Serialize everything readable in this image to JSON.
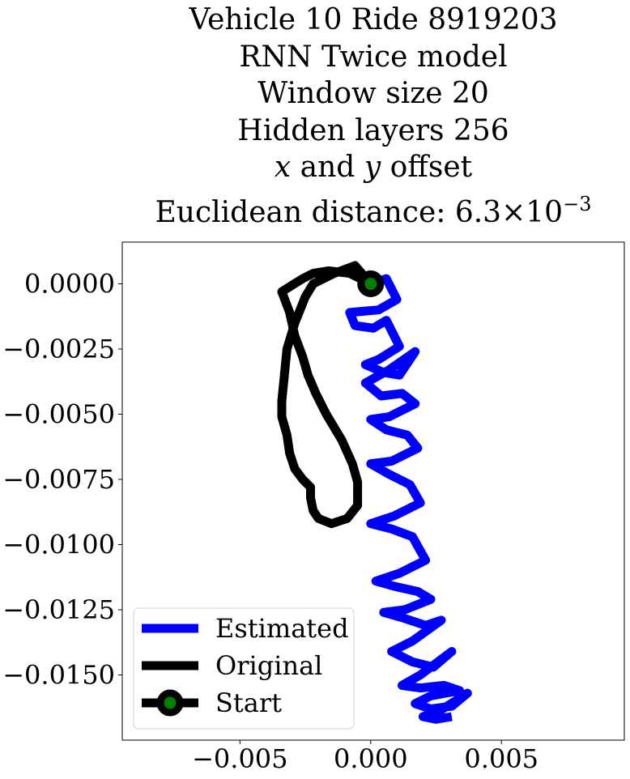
{
  "chart_data": {
    "type": "line",
    "title_lines": [
      "Vehicle 10 Ride 8919203",
      "RNN Twice model",
      "Window size 20",
      "Hidden layers 256"
    ],
    "offset_line": {
      "x_symbol": "x",
      "connector": "and",
      "y_symbol": "y",
      "suffix": "offset"
    },
    "distance_line": {
      "label": "Euclidean distance:",
      "mantissa": "6.3",
      "times": "×",
      "base": "10",
      "exponent": "−3"
    },
    "xlim": [
      -0.0095,
      0.0097
    ],
    "ylim": [
      -0.0175,
      0.0016
    ],
    "xticks": [
      {
        "value": -0.005,
        "label": "−0.005"
      },
      {
        "value": 0.0,
        "label": "0.000"
      },
      {
        "value": 0.005,
        "label": "0.005"
      }
    ],
    "yticks": [
      {
        "value": 0.0,
        "label": "0.0000"
      },
      {
        "value": -0.0025,
        "label": "−0.0025"
      },
      {
        "value": -0.005,
        "label": "−0.0050"
      },
      {
        "value": -0.0075,
        "label": "−0.0075"
      },
      {
        "value": -0.01,
        "label": "−0.0100"
      },
      {
        "value": -0.0125,
        "label": "−0.0125"
      },
      {
        "value": -0.015,
        "label": "−0.0150"
      }
    ],
    "legend_position": "lower-left",
    "series": [
      {
        "name": "Estimated",
        "color": "#0000ff",
        "x": [
          0.0,
          0.0006,
          0.001,
          0.0003,
          -0.0008,
          -0.0006,
          0.0001,
          0.0006,
          0.0011,
          0.0003,
          -0.0002,
          0.0005,
          0.0011,
          0.0017,
          0.0007,
          -0.0002,
          0.0004,
          0.0012,
          0.0017,
          0.0007,
          0.0,
          0.0006,
          0.0014,
          0.0018,
          0.0008,
          0.0,
          0.0007,
          0.0015,
          0.0019,
          0.0009,
          0.0,
          0.0008,
          0.0016,
          0.0021,
          0.0011,
          0.0002,
          0.0009,
          0.0018,
          0.0023,
          0.0013,
          0.0005,
          0.0012,
          0.0021,
          0.0027,
          0.0016,
          0.0008,
          0.0016,
          0.0024,
          0.0031,
          0.0019,
          0.0012,
          0.0019,
          0.0028,
          0.0034,
          0.0023,
          0.0017,
          0.0023,
          0.0031,
          0.0037,
          0.0026,
          0.002,
          0.0025,
          0.0031
        ],
        "y": [
          0.0,
          0.0002,
          -0.0006,
          -0.001,
          -0.0011,
          -0.0016,
          -0.0017,
          -0.0014,
          -0.0024,
          -0.0029,
          -0.0031,
          -0.0034,
          -0.0035,
          -0.0026,
          -0.0033,
          -0.0038,
          -0.0043,
          -0.0042,
          -0.0046,
          -0.0051,
          -0.0052,
          -0.0056,
          -0.0058,
          -0.0063,
          -0.0068,
          -0.0069,
          -0.0073,
          -0.0077,
          -0.0084,
          -0.0089,
          -0.0092,
          -0.0094,
          -0.0097,
          -0.0106,
          -0.0111,
          -0.0114,
          -0.0116,
          -0.0118,
          -0.0121,
          -0.0125,
          -0.0126,
          -0.0128,
          -0.0131,
          -0.0129,
          -0.0137,
          -0.0141,
          -0.0145,
          -0.0147,
          -0.0141,
          -0.015,
          -0.0154,
          -0.0155,
          -0.0154,
          -0.0156,
          -0.0158,
          -0.0161,
          -0.0163,
          -0.0162,
          -0.0157,
          -0.0164,
          -0.0166,
          -0.0167,
          -0.0166
        ]
      },
      {
        "name": "Original",
        "color": "#000000",
        "x": [
          0.0,
          -0.0006,
          -0.0014,
          -0.0022,
          -0.0025,
          -0.0029,
          -0.0032,
          -0.0033,
          -0.0034,
          -0.0034,
          -0.0032,
          -0.0031,
          -0.0029,
          -0.0026,
          -0.0023,
          -0.0023,
          -0.0022,
          -0.002,
          -0.0015,
          -0.0009,
          -0.0005,
          -0.0005,
          -0.0007,
          -0.0011,
          -0.0017,
          -0.0021,
          -0.0024,
          -0.0026,
          -0.0029,
          -0.0031,
          -0.0034,
          -0.0026,
          -0.0022,
          -0.0016,
          -0.0008,
          0.0
        ],
        "y": [
          0.0,
          0.0007,
          0.0004,
          0.0,
          -0.0005,
          -0.0015,
          -0.0025,
          -0.0035,
          -0.0045,
          -0.0051,
          -0.0058,
          -0.0065,
          -0.0071,
          -0.0075,
          -0.0078,
          -0.0082,
          -0.0087,
          -0.009,
          -0.0092,
          -0.009,
          -0.0085,
          -0.0076,
          -0.0069,
          -0.006,
          -0.005,
          -0.0042,
          -0.0035,
          -0.0028,
          -0.002,
          -0.0011,
          -0.0003,
          0.0002,
          0.0004,
          0.0005,
          0.0004,
          0.0
        ]
      },
      {
        "name": "Start",
        "color": "#000000",
        "marker_face": "#008000",
        "x": [
          0.0
        ],
        "y": [
          0.0
        ]
      }
    ]
  }
}
